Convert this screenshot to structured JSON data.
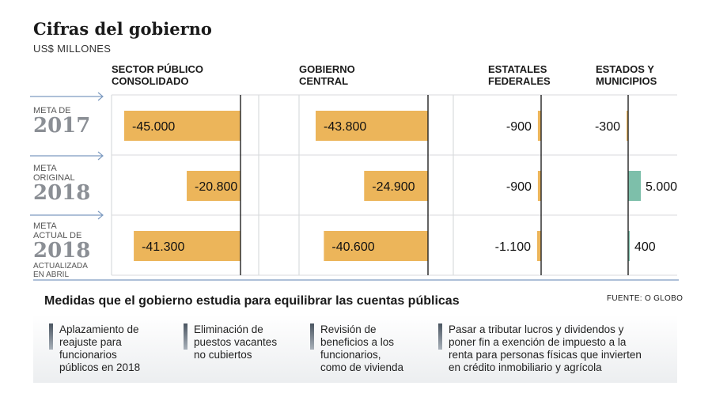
{
  "title": "Cifras del gobierno",
  "subtitle": "US$ MILLONES",
  "panels": [
    {
      "line1": "SECTOR PÚBLICO",
      "line2": "CONSOLIDADO"
    },
    {
      "line1": "GOBIERNO",
      "line2": "CENTRAL"
    },
    {
      "line1": "ESTATALES",
      "line2": "FEDERALES"
    },
    {
      "line1": "ESTADOS Y",
      "line2": "MUNICIPIOS"
    }
  ],
  "rows": [
    {
      "label_lines": [
        "META DE"
      ],
      "year": "2017",
      "sub_lines": []
    },
    {
      "label_lines": [
        "META",
        "ORIGINAL"
      ],
      "year": "2018",
      "sub_lines": []
    },
    {
      "label_lines": [
        "META",
        "ACTUAL DE"
      ],
      "year": "2018",
      "sub_lines": [
        "ACTUALIZADA",
        "EN ABRIL"
      ]
    }
  ],
  "chart_data": {
    "type": "bar",
    "orientation": "horizontal",
    "title": "Cifras del gobierno",
    "subtitle": "US$ MILLONES",
    "categories": [
      "META DE 2017",
      "META ORIGINAL 2018",
      "META ACTUAL DE 2018"
    ],
    "series": [
      {
        "name": "SECTOR PÚBLICO CONSOLIDADO",
        "values": [
          -45000,
          -20800,
          -41300
        ],
        "labels": [
          "-45.000",
          "-20.800",
          "-41.300"
        ]
      },
      {
        "name": "GOBIERNO CENTRAL",
        "values": [
          -43800,
          -24900,
          -40600
        ],
        "labels": [
          "-43.800",
          "-24.900",
          "-40.600"
        ]
      },
      {
        "name": "ESTATALES FEDERALES",
        "values": [
          -900,
          -900,
          -1100
        ],
        "labels": [
          "-900",
          "-900",
          "-1.100"
        ]
      },
      {
        "name": "ESTADOS Y MUNICIPIOS",
        "values": [
          -300,
          5000,
          400
        ],
        "labels": [
          "-300",
          "5.000",
          "400"
        ]
      }
    ],
    "colors": {
      "negative": "#ecb55a",
      "positive": "#7dbfaa"
    },
    "grid": true
  },
  "measures": {
    "title": "Medidas que el gobierno estudia para equilibrar las cuentas públicas",
    "source": "FUENTE: O GLOBO",
    "items": [
      [
        "Aplazamiento de",
        "reajuste para",
        "funcionarios",
        "públicos en 2018"
      ],
      [
        "Eliminación de",
        "puestos vacantes",
        "no cubiertos"
      ],
      [
        "Revisión de",
        "beneficios a los",
        "funcionarios,",
        "como de vivienda"
      ],
      [
        "Pasar a tributar lucros y dividendos y",
        "poner fin a exención de impuesto a la",
        "renta para personas físicas que invierten",
        "en crédito inmobiliario y agrícola"
      ]
    ]
  }
}
